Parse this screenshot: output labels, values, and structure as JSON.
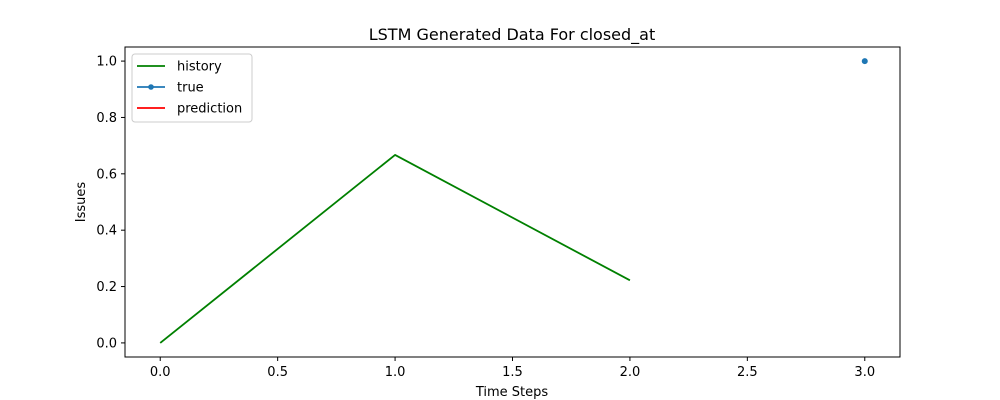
{
  "chart_data": {
    "type": "line",
    "title": "LSTM Generated Data For closed_at",
    "xlabel": "Time Steps",
    "ylabel": "Issues",
    "xlim": [
      -0.15,
      3.15
    ],
    "ylim": [
      -0.05,
      1.05
    ],
    "xticks": [
      "0.0",
      "0.5",
      "1.0",
      "1.5",
      "2.0",
      "2.5",
      "3.0"
    ],
    "yticks": [
      "0.0",
      "0.2",
      "0.4",
      "0.6",
      "0.8",
      "1.0"
    ],
    "grid": false,
    "legend_position": "top-left",
    "series": [
      {
        "name": "history",
        "color": "#008000",
        "marker": "none",
        "x": [
          0,
          1,
          2
        ],
        "y": [
          0.0,
          0.667,
          0.222
        ]
      },
      {
        "name": "true",
        "color": "#1f77b4",
        "marker": "dot",
        "x": [
          3
        ],
        "y": [
          1.0
        ]
      },
      {
        "name": "prediction",
        "color": "#ff0000",
        "marker": "none",
        "x": [],
        "y": []
      }
    ]
  }
}
